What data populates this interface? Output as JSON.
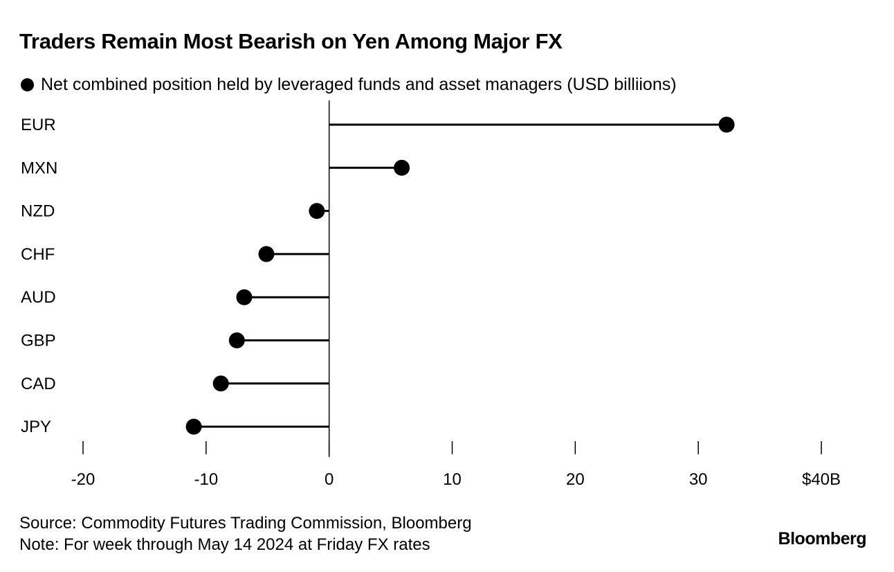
{
  "title": "Traders Remain Most Bearish on Yen Among Major FX",
  "legend_label": "Net combined position held by leveraged funds and asset managers (USD billiions)",
  "source": "Source: Commodity Futures Trading Commission, Bloomberg",
  "note": "Note: For week through May 14 2024 at Friday FX rates",
  "logo": "Bloomberg",
  "chart_data": {
    "type": "lollipop",
    "title": "Traders Remain Most Bearish on Yen Among Major FX",
    "categories": [
      "EUR",
      "MXN",
      "NZD",
      "CHF",
      "AUD",
      "GBP",
      "CAD",
      "JPY"
    ],
    "series": [
      {
        "name": "Net combined position held by leveraged funds and asset managers (USD billiions)",
        "values": [
          32.3,
          5.9,
          -1.0,
          -5.1,
          -6.9,
          -7.5,
          -8.8,
          -11.0
        ]
      }
    ],
    "xlim": [
      -20,
      40
    ],
    "xticks": [
      -20,
      -10,
      0,
      10,
      20,
      30,
      40
    ],
    "xtick_labels": [
      "-20",
      "-10",
      "0",
      "10",
      "20",
      "30",
      "$40B"
    ],
    "grid": false,
    "legend_position": "top-left",
    "color": "#000000"
  }
}
